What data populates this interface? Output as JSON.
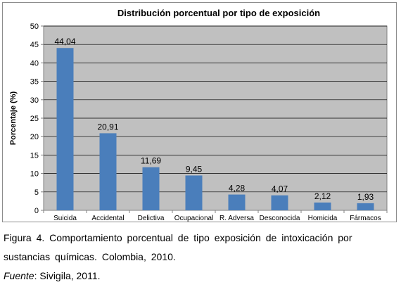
{
  "chart_data": {
    "type": "bar",
    "title": "Distribución porcentual por tipo de exposición",
    "xlabel": "",
    "ylabel": "Porcentaje (%)",
    "categories": [
      "Suicida",
      "Accidental",
      "Delictiva",
      "Ocupacional",
      "R. Adversa",
      "Desconocida",
      "Homicida",
      "Fármacos"
    ],
    "values": [
      44.04,
      20.91,
      11.69,
      9.45,
      4.28,
      4.07,
      2.12,
      1.93
    ],
    "value_labels": [
      "44,04",
      "20,91",
      "11,69",
      "9,45",
      "4,28",
      "4,07",
      "2,12",
      "1,93"
    ],
    "ylim": [
      0,
      50
    ],
    "yticks": [
      0,
      5,
      10,
      15,
      20,
      25,
      30,
      35,
      40,
      45,
      50
    ],
    "grid": true,
    "colors": {
      "bar": "#4a7ebb",
      "plot_background": "#c0c0c0",
      "gridline": "#000000"
    }
  },
  "caption": {
    "line1": "Figura 4. Comportamiento porcentual de tipo exposición de intoxicación por",
    "line2": "sustancias químicas. Colombia, 2010.",
    "source_label": "Fuente",
    "source_text": ": Sivigila, 2011."
  }
}
